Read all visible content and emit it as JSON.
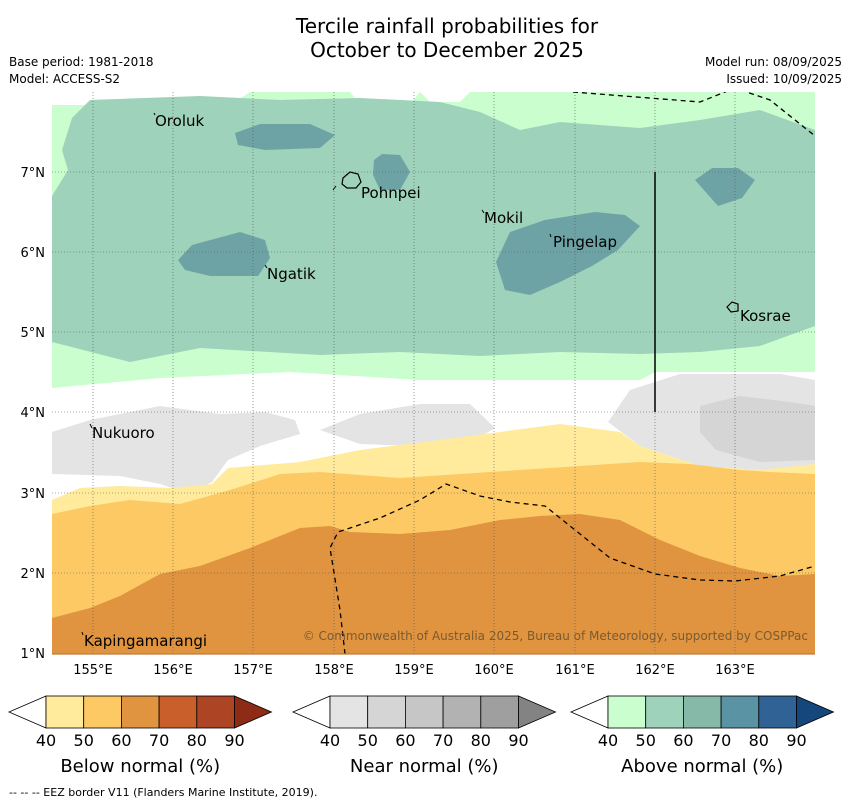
{
  "header": {
    "title_line1": "Tercile rainfall probabilities for",
    "title_line2": "October to December 2025",
    "base_period": "Base period: 1981-2018",
    "model": "Model: ACCESS-S2",
    "model_run": "Model run: 08/09/2025",
    "issued": "Issued: 10/09/2025"
  },
  "map": {
    "places": [
      "Oroluk",
      "Pohnpei",
      "Mokil",
      "Pingelap",
      "Ngatik",
      "Kosrae",
      "Nukuoro",
      "Kapingamarangi"
    ],
    "lat_labels": [
      "7°N",
      "6°N",
      "5°N",
      "4°N",
      "3°N",
      "2°N",
      "1°N"
    ],
    "lon_labels": [
      "155°E",
      "156°E",
      "157°E",
      "158°E",
      "159°E",
      "160°E",
      "161°E",
      "162°E",
      "163°E"
    ],
    "copyright": "© Commonwealth of Australia 2025, Bureau of Meteorology, supported by COSPPac"
  },
  "colorbars": [
    {
      "title": "Below normal (%)",
      "ticks": [
        "40",
        "50",
        "60",
        "70",
        "80",
        "90"
      ],
      "colors": [
        "#ffeb9b",
        "#fdc964",
        "#e0943f",
        "#c9602c",
        "#ad4423",
        "#8e2b17"
      ]
    },
    {
      "title": "Near normal (%)",
      "ticks": [
        "40",
        "50",
        "60",
        "70",
        "80",
        "90"
      ],
      "colors": [
        "#e4e4e4",
        "#d5d5d5",
        "#c6c6c6",
        "#b2b2b2",
        "#9f9f9f",
        "#838383"
      ]
    },
    {
      "title": "Above normal (%)",
      "ticks": [
        "40",
        "50",
        "60",
        "70",
        "80",
        "90"
      ],
      "colors": [
        "#cafece",
        "#9fd2ba",
        "#86b9a8",
        "#5a93a3",
        "#306296",
        "#15467c"
      ]
    }
  ],
  "footnote": "-- -- -- EEZ border V11 (Flanders Marine Institute, 2019)."
}
